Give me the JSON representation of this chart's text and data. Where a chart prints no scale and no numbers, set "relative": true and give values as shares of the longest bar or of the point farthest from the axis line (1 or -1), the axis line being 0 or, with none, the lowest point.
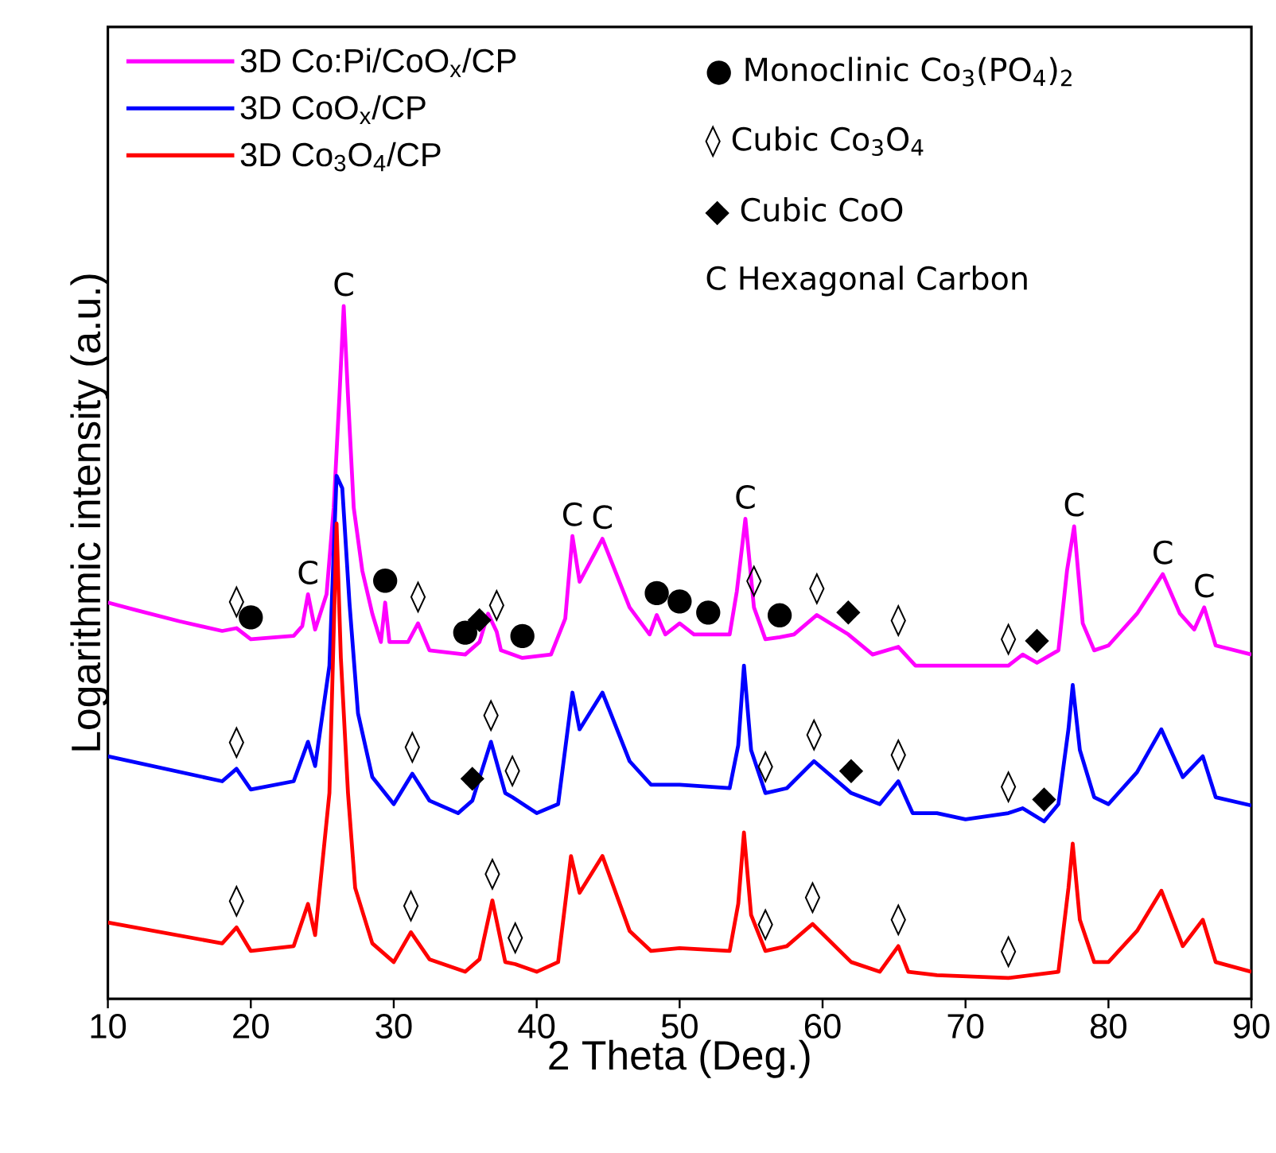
{
  "chart_data": {
    "type": "line",
    "relative": true,
    "xlabel": "2 Theta (Deg.)",
    "ylabel": "Logarithmic intensity (a.u.)",
    "xlim": [
      10,
      90
    ],
    "xticks": [
      10,
      20,
      30,
      40,
      50,
      60,
      70,
      80,
      90
    ],
    "legend": "top left",
    "series": [
      {
        "name": "3D Co:Pi/CoO$_{x}$/CP",
        "color": "#ff00ff",
        "x": [
          10,
          12,
          15,
          18,
          19,
          20,
          23,
          23.6,
          24.0,
          24.5,
          25.3,
          25.8,
          26.2,
          26.5,
          26.8,
          27.2,
          27.8,
          28.5,
          29.1,
          29.4,
          29.7,
          31,
          31.7,
          32.5,
          35,
          36,
          36.6,
          37.2,
          37.5,
          39,
          41,
          42,
          42.5,
          43.0,
          44.6,
          46.5,
          47.9,
          48.4,
          49,
          50,
          51,
          52,
          53.5,
          54.0,
          54.6,
          55.2,
          56,
          57,
          58,
          59.6,
          61.8,
          63.5,
          65.3,
          66.5,
          70,
          73,
          74,
          75,
          76.5,
          77.1,
          77.6,
          78.2,
          79,
          80,
          82,
          83.8,
          85,
          86,
          86.7,
          87.5,
          90
        ],
        "values": [
          0.572,
          0.561,
          0.545,
          0.531,
          0.535,
          0.519,
          0.524,
          0.538,
          0.584,
          0.533,
          0.584,
          0.709,
          0.87,
          1.0,
          0.87,
          0.709,
          0.618,
          0.556,
          0.515,
          0.572,
          0.515,
          0.515,
          0.542,
          0.503,
          0.497,
          0.515,
          0.556,
          0.53,
          0.503,
          0.492,
          0.497,
          0.549,
          0.668,
          0.602,
          0.664,
          0.565,
          0.526,
          0.554,
          0.526,
          0.542,
          0.526,
          0.526,
          0.526,
          0.588,
          0.693,
          0.565,
          0.519,
          0.522,
          0.526,
          0.554,
          0.526,
          0.497,
          0.508,
          0.481,
          0.481,
          0.481,
          0.497,
          0.485,
          0.503,
          0.618,
          0.682,
          0.542,
          0.503,
          0.51,
          0.556,
          0.613,
          0.556,
          0.533,
          0.565,
          0.51,
          0.497
        ]
      },
      {
        "name": "3D CoO$_{x}$/CP",
        "color": "#0000ff",
        "x": [
          10,
          18,
          19,
          20,
          23,
          24,
          24.5,
          25.5,
          26.0,
          26.4,
          26.9,
          27.5,
          28.5,
          30,
          31.3,
          32.5,
          34.5,
          35.5,
          36.8,
          37.8,
          38.3,
          40,
          41.5,
          42.5,
          43,
          44.6,
          46.5,
          48,
          50,
          53.5,
          54.1,
          54.5,
          55,
          56,
          57.5,
          59.4,
          62,
          64,
          65.3,
          66.3,
          68,
          70,
          73,
          74,
          75.5,
          76.5,
          77.2,
          77.5,
          78,
          79,
          80,
          82,
          83.7,
          85.2,
          86.6,
          87.5,
          90
        ],
        "values": [
          0.35,
          0.314,
          0.332,
          0.302,
          0.314,
          0.371,
          0.336,
          0.481,
          0.755,
          0.737,
          0.572,
          0.412,
          0.32,
          0.281,
          0.325,
          0.286,
          0.268,
          0.286,
          0.371,
          0.297,
          0.291,
          0.268,
          0.281,
          0.442,
          0.389,
          0.442,
          0.343,
          0.309,
          0.309,
          0.304,
          0.366,
          0.481,
          0.359,
          0.297,
          0.304,
          0.343,
          0.297,
          0.281,
          0.314,
          0.268,
          0.268,
          0.259,
          0.268,
          0.275,
          0.256,
          0.281,
          0.389,
          0.453,
          0.359,
          0.291,
          0.281,
          0.327,
          0.389,
          0.32,
          0.35,
          0.291,
          0.279
        ]
      },
      {
        "name": "3D Co$_{3}$O$_{4}$/CP",
        "color": "#ff0000",
        "x": [
          10,
          18,
          19,
          20,
          23,
          24,
          24.5,
          25.5,
          26.0,
          26.3,
          26.8,
          27.3,
          28.5,
          30,
          31.2,
          32.5,
          35,
          36,
          36.9,
          37.8,
          38.5,
          40,
          41.5,
          42.4,
          43,
          44.6,
          46.5,
          48,
          50,
          53.5,
          54.1,
          54.5,
          55,
          56,
          57.5,
          59.3,
          62,
          64,
          65.3,
          66,
          68,
          73,
          76.5,
          77.2,
          77.5,
          78,
          79,
          80,
          82,
          83.7,
          85.2,
          86.6,
          87.5,
          90
        ],
        "values": [
          0.11,
          0.08,
          0.103,
          0.069,
          0.076,
          0.137,
          0.092,
          0.297,
          0.686,
          0.492,
          0.297,
          0.16,
          0.08,
          0.053,
          0.096,
          0.057,
          0.039,
          0.057,
          0.142,
          0.053,
          0.05,
          0.039,
          0.053,
          0.206,
          0.153,
          0.206,
          0.098,
          0.069,
          0.073,
          0.069,
          0.137,
          0.24,
          0.121,
          0.069,
          0.076,
          0.108,
          0.053,
          0.039,
          0.076,
          0.039,
          0.034,
          0.03,
          0.039,
          0.16,
          0.224,
          0.114,
          0.053,
          0.053,
          0.098,
          0.156,
          0.076,
          0.114,
          0.053,
          0.039
        ]
      }
    ],
    "annotations": [
      "● Monoclinic Co$_{3}$(PO$_{4}$)$_{2}$",
      "◊ Cubic Co$_{3}$O$_{4}$",
      "◆ Cubic CoO",
      "C Hexagonal Carbon",
      {
        "text": "C",
        "x": 26.5,
        "y": 1.0
      },
      {
        "text": "C",
        "x": 24.0,
        "y": 0.584
      },
      {
        "text": "C",
        "x": 42.5,
        "y": 0.668
      },
      {
        "text": "C",
        "x": 44.6,
        "y": 0.664
      },
      {
        "text": "C",
        "x": 54.6,
        "y": 0.693
      },
      {
        "text": "C",
        "x": 77.6,
        "y": 0.682
      },
      {
        "text": "C",
        "x": 83.8,
        "y": 0.613
      },
      {
        "text": "C",
        "x": 86.7,
        "y": 0.565
      },
      {
        "text": "◊",
        "x": 19,
        "y": 0.535
      },
      {
        "text": "●",
        "x": 20,
        "y": 0.519
      },
      {
        "text": "●",
        "x": 29.4,
        "y": 0.572
      },
      {
        "text": "◊",
        "x": 31.7,
        "y": 0.542
      },
      {
        "text": "●",
        "x": 35,
        "y": 0.497
      },
      {
        "text": "◆",
        "x": 36,
        "y": 0.515
      },
      {
        "text": "◊",
        "x": 37.2,
        "y": 0.53
      },
      {
        "text": "●",
        "x": 39,
        "y": 0.492
      },
      {
        "text": "●",
        "x": 48.4,
        "y": 0.554
      },
      {
        "text": "●",
        "x": 50,
        "y": 0.542
      },
      {
        "text": "●",
        "x": 52,
        "y": 0.526
      },
      {
        "text": "◊",
        "x": 55.2,
        "y": 0.565
      },
      {
        "text": "●",
        "x": 57,
        "y": 0.522
      },
      {
        "text": "◊",
        "x": 59.6,
        "y": 0.554
      },
      {
        "text": "◆",
        "x": 61.8,
        "y": 0.526
      },
      {
        "text": "◊",
        "x": 65.3,
        "y": 0.508
      },
      {
        "text": "◊",
        "x": 73,
        "y": 0.481
      },
      {
        "text": "◆",
        "x": 75,
        "y": 0.485
      },
      {
        "text": "◊",
        "x": 19,
        "y": 0.332
      },
      {
        "text": "◊",
        "x": 31.3,
        "y": 0.325
      },
      {
        "text": "◆",
        "x": 35.5,
        "y": 0.286
      },
      {
        "text": "◊",
        "x": 36.8,
        "y": 0.371
      },
      {
        "text": "◊",
        "x": 38.3,
        "y": 0.291
      },
      {
        "text": "◊",
        "x": 56,
        "y": 0.297
      },
      {
        "text": "◊",
        "x": 59.4,
        "y": 0.343
      },
      {
        "text": "◆",
        "x": 62,
        "y": 0.297
      },
      {
        "text": "◊",
        "x": 65.3,
        "y": 0.314
      },
      {
        "text": "◊",
        "x": 73,
        "y": 0.268
      },
      {
        "text": "◆",
        "x": 75.5,
        "y": 0.256
      },
      {
        "text": "◊",
        "x": 19,
        "y": 0.103
      },
      {
        "text": "◊",
        "x": 31.2,
        "y": 0.096
      },
      {
        "text": "◊",
        "x": 36.9,
        "y": 0.142
      },
      {
        "text": "◊",
        "x": 38.5,
        "y": 0.05
      },
      {
        "text": "◊",
        "x": 56,
        "y": 0.069
      },
      {
        "text": "◊",
        "x": 59.3,
        "y": 0.108
      },
      {
        "text": "◊",
        "x": 65.3,
        "y": 0.076
      },
      {
        "text": "◊",
        "x": 73,
        "y": 0.03
      }
    ]
  }
}
